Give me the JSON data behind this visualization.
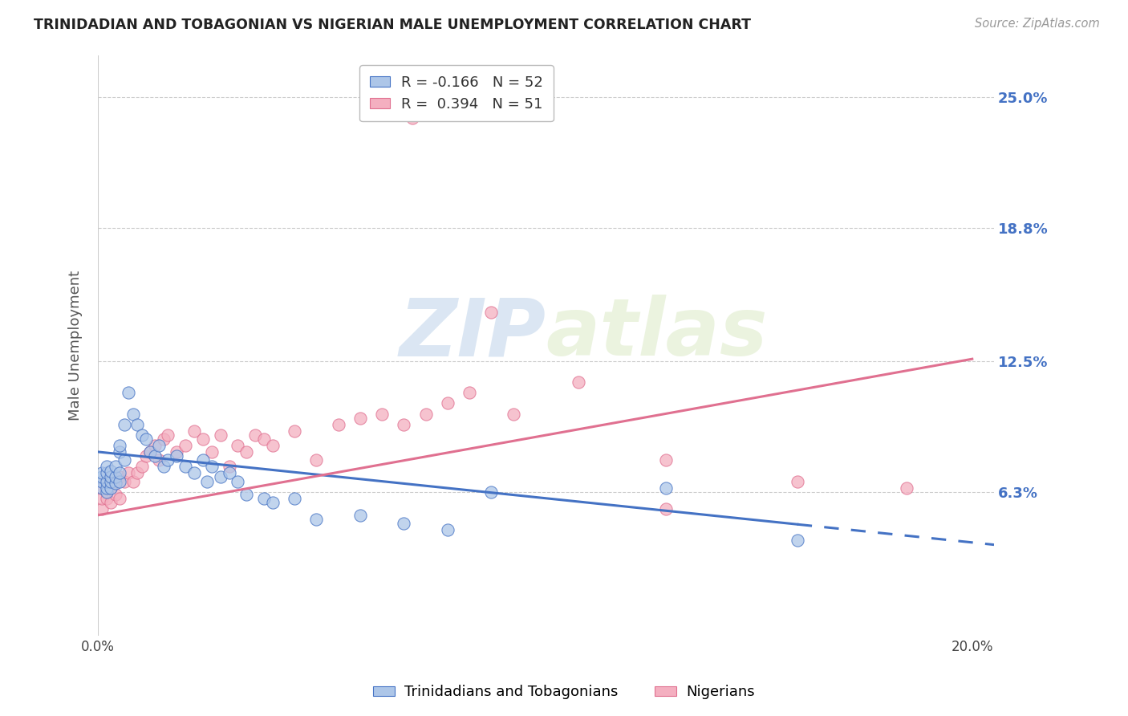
{
  "title": "TRINIDADIAN AND TOBAGONIAN VS NIGERIAN MALE UNEMPLOYMENT CORRELATION CHART",
  "source": "Source: ZipAtlas.com",
  "ylabel": "Male Unemployment",
  "legend_label1": "Trinidadians and Tobagonians",
  "legend_label2": "Nigerians",
  "color_blue": "#adc6e8",
  "color_pink": "#f4afc0",
  "line_blue": "#4472c4",
  "line_pink": "#e07090",
  "watermark_zip": "ZIP",
  "watermark_atlas": "atlas",
  "background_color": "#ffffff",
  "grid_color": "#cccccc",
  "xlim": [
    0.0,
    0.205
  ],
  "ylim": [
    -0.005,
    0.27
  ],
  "y_ticks": [
    0.063,
    0.125,
    0.188,
    0.25
  ],
  "y_tick_labels": [
    "6.3%",
    "12.5%",
    "18.8%",
    "25.0%"
  ],
  "x_ticks": [
    0.0,
    0.05,
    0.1,
    0.15,
    0.2
  ],
  "x_tick_labels": [
    "0.0%",
    "",
    "",
    "",
    "20.0%"
  ],
  "blue_scatter_x": [
    0.001,
    0.001,
    0.001,
    0.001,
    0.002,
    0.002,
    0.002,
    0.002,
    0.002,
    0.003,
    0.003,
    0.003,
    0.003,
    0.004,
    0.004,
    0.004,
    0.005,
    0.005,
    0.005,
    0.005,
    0.006,
    0.006,
    0.007,
    0.008,
    0.009,
    0.01,
    0.011,
    0.012,
    0.013,
    0.014,
    0.015,
    0.016,
    0.018,
    0.02,
    0.022,
    0.024,
    0.025,
    0.026,
    0.028,
    0.03,
    0.032,
    0.034,
    0.038,
    0.04,
    0.045,
    0.05,
    0.06,
    0.07,
    0.08,
    0.09,
    0.13,
    0.16
  ],
  "blue_scatter_y": [
    0.065,
    0.068,
    0.07,
    0.072,
    0.063,
    0.065,
    0.068,
    0.072,
    0.075,
    0.065,
    0.068,
    0.07,
    0.073,
    0.067,
    0.07,
    0.075,
    0.068,
    0.072,
    0.082,
    0.085,
    0.078,
    0.095,
    0.11,
    0.1,
    0.095,
    0.09,
    0.088,
    0.082,
    0.08,
    0.085,
    0.075,
    0.078,
    0.08,
    0.075,
    0.072,
    0.078,
    0.068,
    0.075,
    0.07,
    0.072,
    0.068,
    0.062,
    0.06,
    0.058,
    0.06,
    0.05,
    0.052,
    0.048,
    0.045,
    0.063,
    0.065,
    0.04
  ],
  "pink_scatter_x": [
    0.001,
    0.001,
    0.001,
    0.002,
    0.002,
    0.003,
    0.003,
    0.004,
    0.004,
    0.005,
    0.005,
    0.006,
    0.007,
    0.008,
    0.009,
    0.01,
    0.011,
    0.012,
    0.013,
    0.014,
    0.015,
    0.016,
    0.018,
    0.02,
    0.022,
    0.024,
    0.026,
    0.028,
    0.03,
    0.032,
    0.034,
    0.036,
    0.038,
    0.04,
    0.045,
    0.05,
    0.055,
    0.06,
    0.065,
    0.07,
    0.072,
    0.075,
    0.08,
    0.085,
    0.09,
    0.095,
    0.11,
    0.13,
    0.16,
    0.185,
    0.13
  ],
  "pink_scatter_y": [
    0.055,
    0.06,
    0.065,
    0.06,
    0.068,
    0.058,
    0.065,
    0.062,
    0.068,
    0.06,
    0.07,
    0.068,
    0.072,
    0.068,
    0.072,
    0.075,
    0.08,
    0.082,
    0.085,
    0.078,
    0.088,
    0.09,
    0.082,
    0.085,
    0.092,
    0.088,
    0.082,
    0.09,
    0.075,
    0.085,
    0.082,
    0.09,
    0.088,
    0.085,
    0.092,
    0.078,
    0.095,
    0.098,
    0.1,
    0.095,
    0.24,
    0.1,
    0.105,
    0.11,
    0.148,
    0.1,
    0.115,
    0.078,
    0.068,
    0.065,
    0.055
  ],
  "blue_line_x_start": 0.0,
  "blue_line_x_solid_end": 0.16,
  "blue_line_x_end": 0.205,
  "blue_line_y_start": 0.082,
  "blue_line_y_end": 0.038,
  "pink_line_x_start": 0.0,
  "pink_line_x_end": 0.2,
  "pink_line_y_start": 0.052,
  "pink_line_y_end": 0.126
}
